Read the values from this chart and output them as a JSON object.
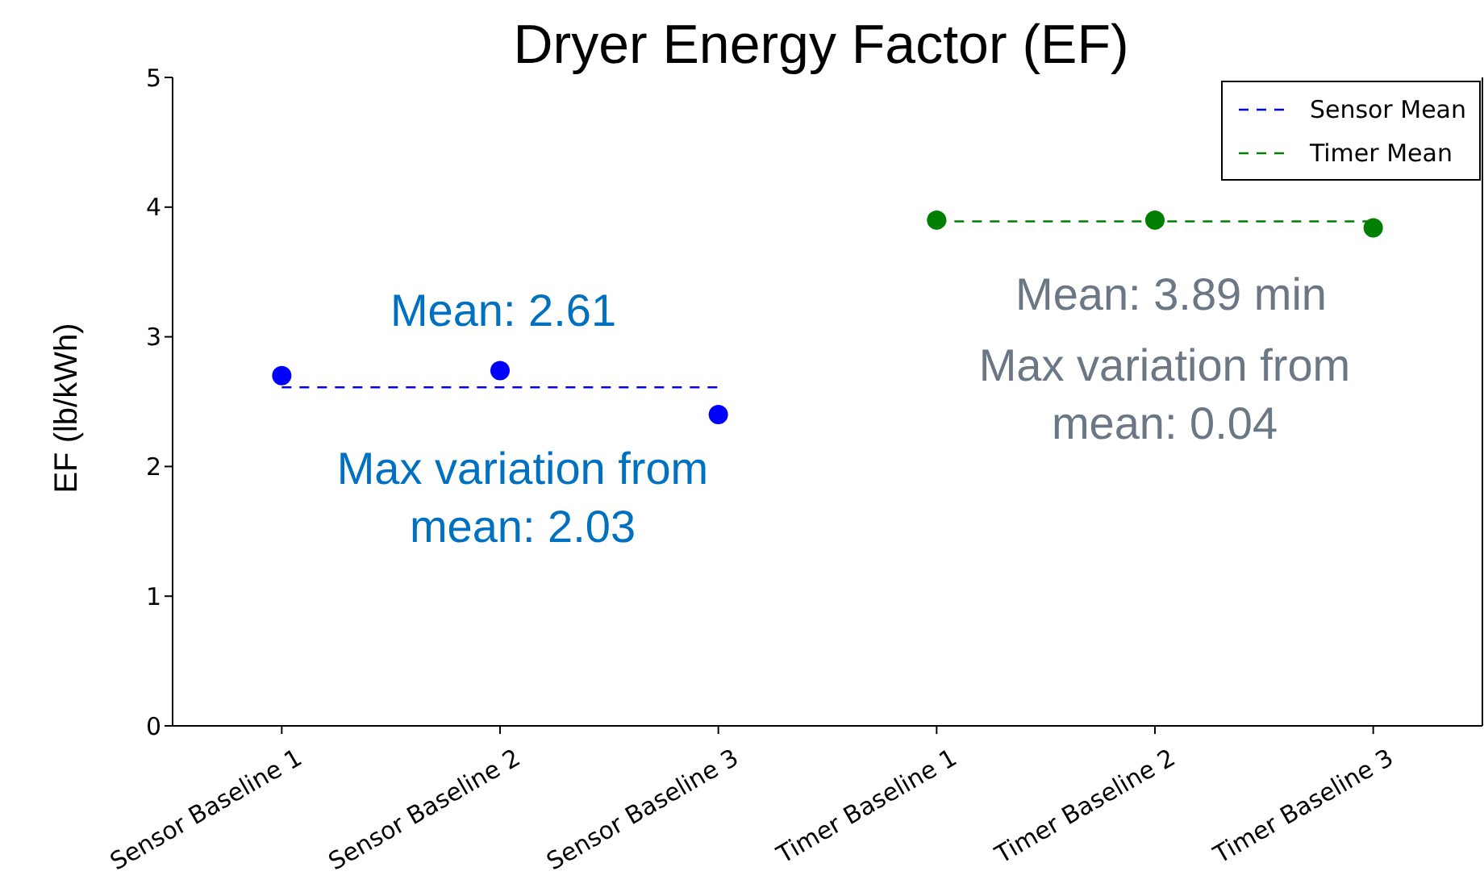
{
  "chart_data": {
    "type": "scatter",
    "title": "Dryer Energy Factor (EF)",
    "ylabel": "EF (lb/kWh)",
    "categories": [
      "Sensor Baseline 1",
      "Sensor Baseline 2",
      "Sensor Baseline 3",
      "Timer Baseline 1",
      "Timer Baseline 2",
      "Timer Baseline 3"
    ],
    "series": [
      {
        "color": "#0000ff",
        "marker": "circle",
        "values": [
          2.7,
          2.74,
          2.4,
          null,
          null,
          null
        ]
      },
      {
        "color": "#007f00",
        "marker": "circle",
        "values": [
          null,
          null,
          null,
          3.9,
          3.9,
          3.84
        ]
      },
      {
        "type": "line",
        "name": "Sensor Mean",
        "color": "#0000ff",
        "line_style": "dashed",
        "marker": "none",
        "values": [
          2.61,
          2.61,
          2.61,
          null,
          null,
          null
        ]
      },
      {
        "type": "line",
        "name": "Timer Mean",
        "color": "#007f00",
        "line_style": "dashed",
        "marker": "none",
        "values": [
          null,
          null,
          null,
          3.89,
          3.89,
          3.89
        ]
      }
    ],
    "annotations": [
      "Mean: 2.61",
      "Max variation from mean: 2.03",
      "Mean: 3.89 min",
      "Max variation from mean: 0.04"
    ],
    "ylim": [
      0,
      5
    ],
    "yticks": [
      0,
      1,
      2,
      3,
      4,
      5
    ],
    "grid": false,
    "legend": "top right"
  }
}
